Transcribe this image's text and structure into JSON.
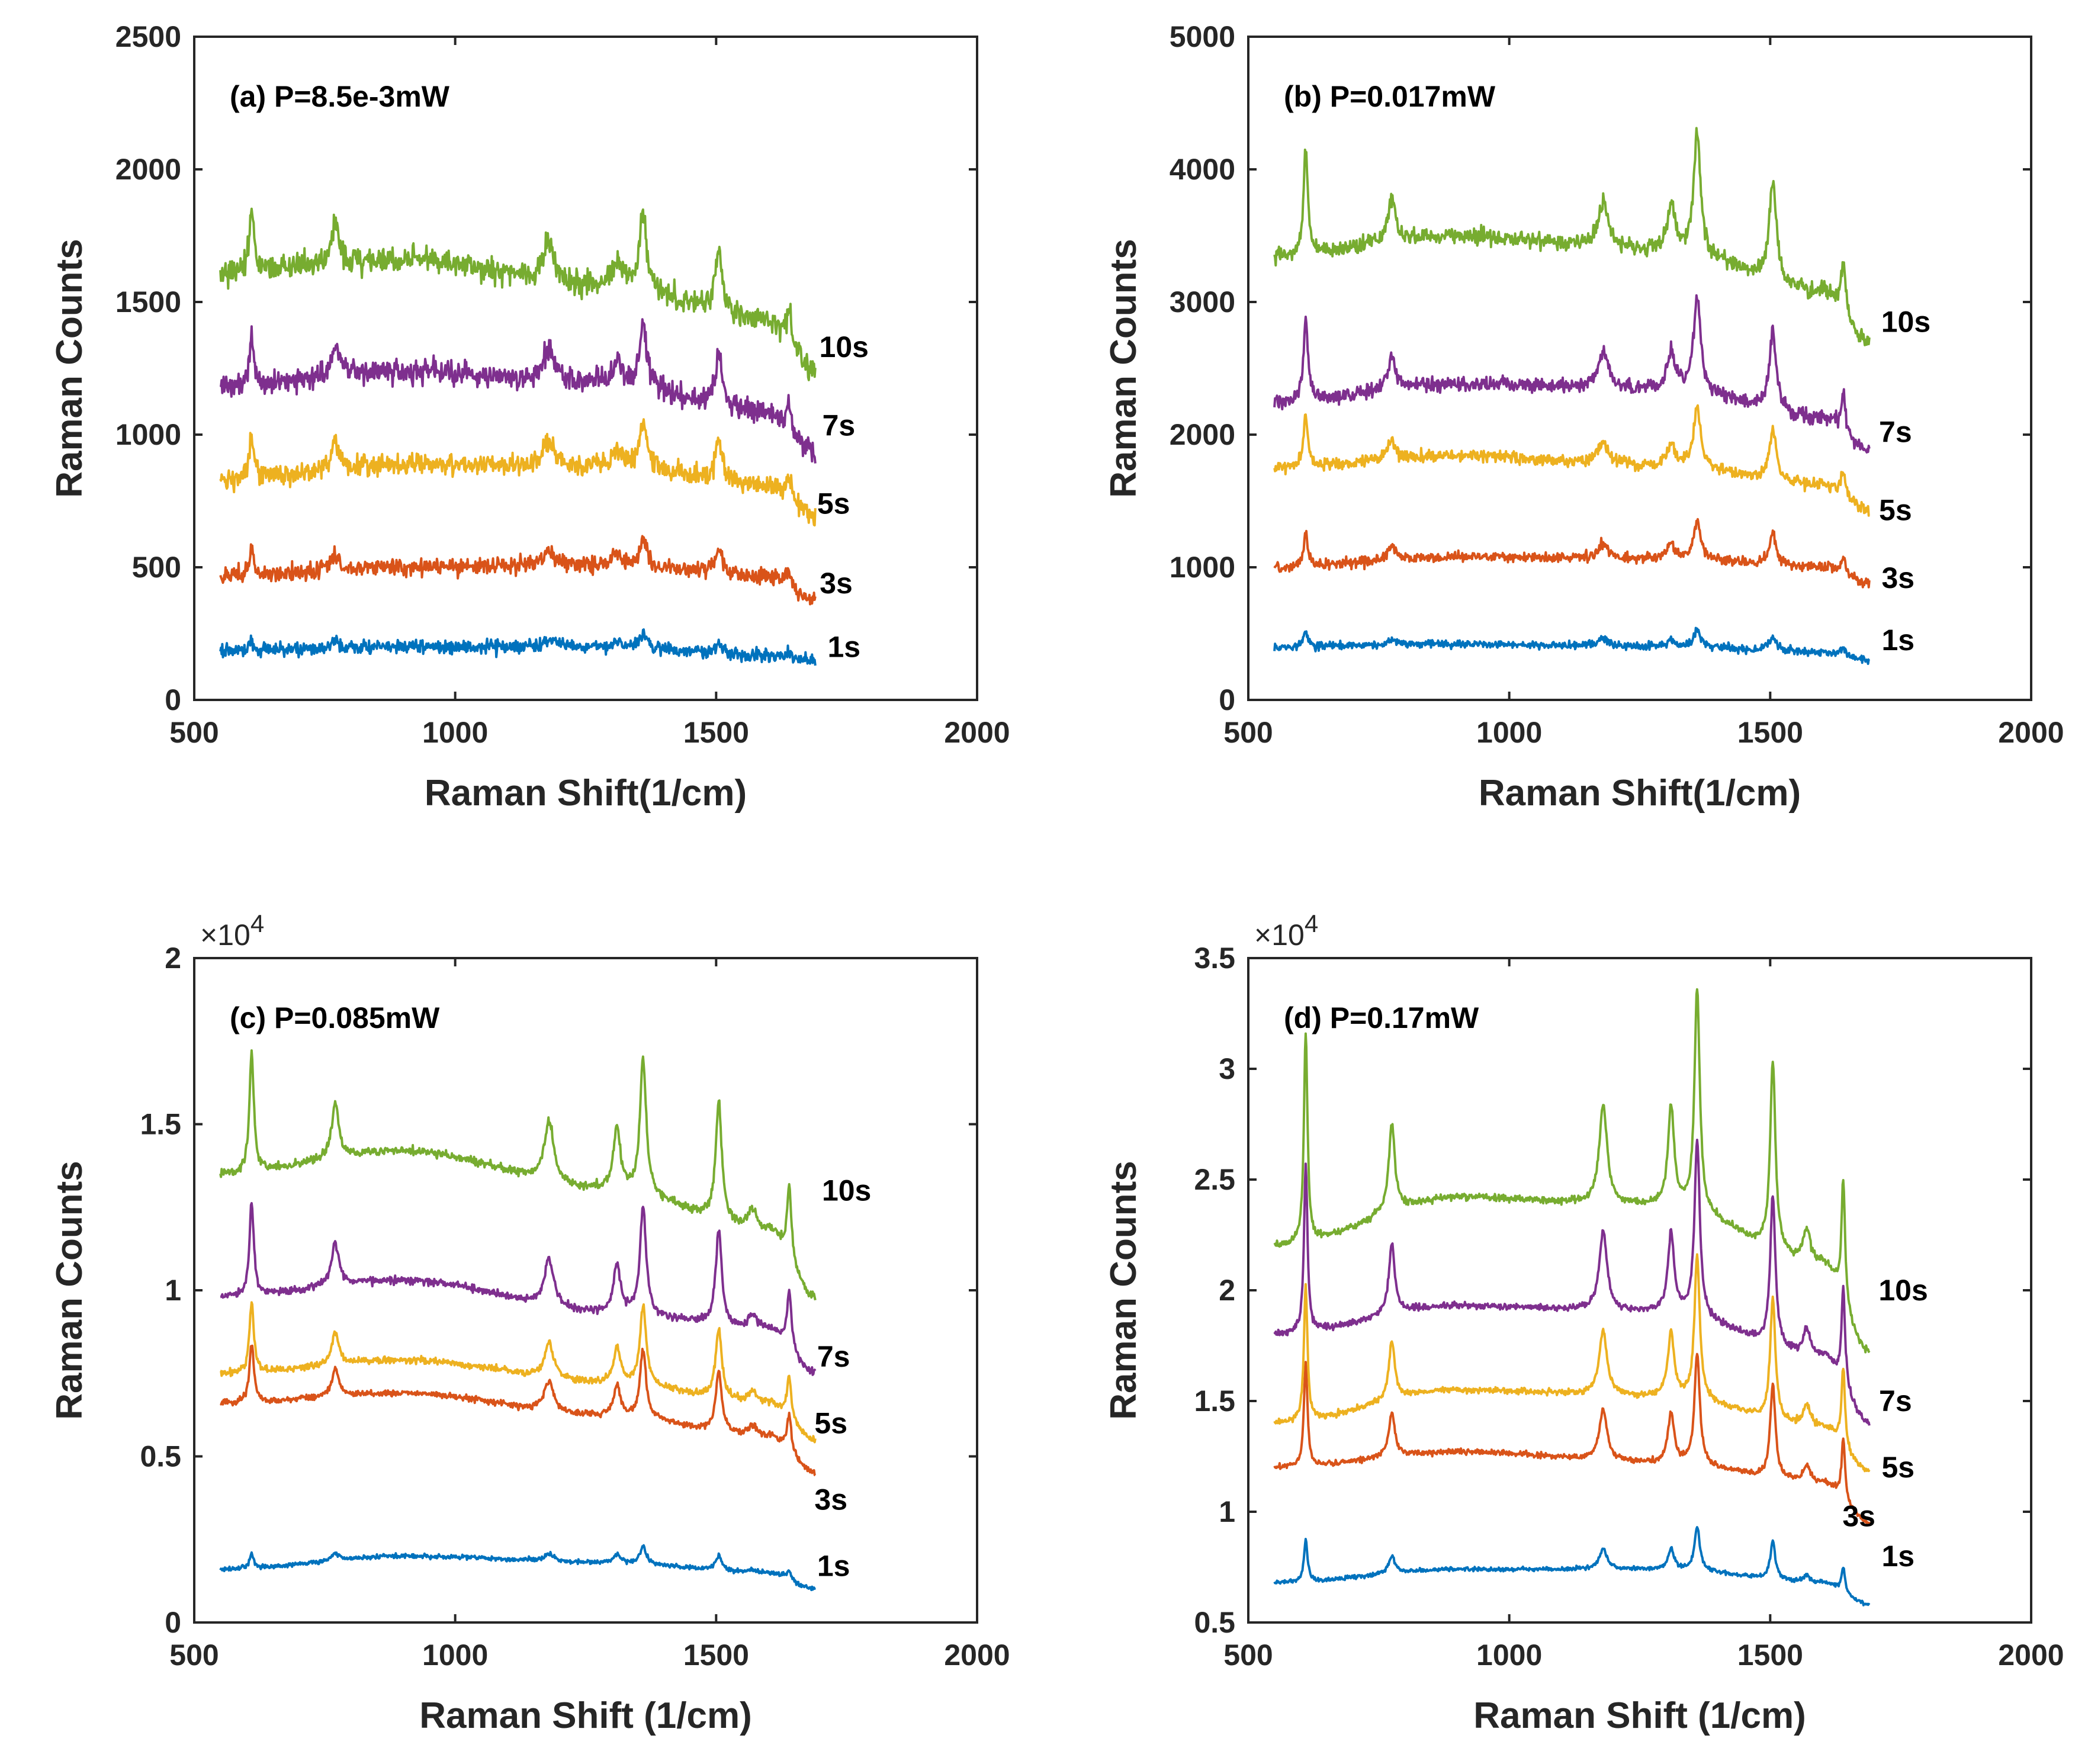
{
  "chart_data": [
    {
      "type": "line",
      "title": "(a) P=8.5e-3mW",
      "xlabel": "Raman Shift(1/cm)",
      "ylabel": "Raman Counts",
      "xlim": [
        500,
        2000
      ],
      "ylim": [
        0,
        2500
      ],
      "xticks": [
        500,
        1000,
        1500,
        2000
      ],
      "yticks": [
        0,
        500,
        1000,
        1500,
        2000,
        2500
      ],
      "exponent_label": "",
      "noise": 45,
      "peaks": [
        {
          "x": 610,
          "w": 5,
          "rel": 0.35
        },
        {
          "x": 770,
          "w": 9,
          "rel": 0.22
        },
        {
          "x": 1180,
          "w": 12,
          "rel": 0.22
        },
        {
          "x": 1310,
          "w": 9,
          "rel": 0.16
        },
        {
          "x": 1360,
          "w": 8,
          "rel": 0.42
        },
        {
          "x": 1505,
          "w": 8,
          "rel": 0.36
        },
        {
          "x": 1640,
          "w": 5,
          "rel": 0.18
        }
      ],
      "series": [
        {
          "name": "1s",
          "label": "1s",
          "color": "#0072BD",
          "baseline": [
            [
              550,
              185
            ],
            [
              900,
              200
            ],
            [
              1300,
              200
            ],
            [
              1600,
              170
            ],
            [
              1690,
              150
            ]
          ],
          "peak_scale": 110
        },
        {
          "name": "3s",
          "label": "3s",
          "color": "#D95319",
          "baseline": [
            [
              550,
              470
            ],
            [
              900,
              500
            ],
            [
              1300,
              510
            ],
            [
              1600,
              470
            ],
            [
              1690,
              380
            ]
          ],
          "peak_scale": 250
        },
        {
          "name": "5s",
          "label": "5s",
          "color": "#EDB120",
          "baseline": [
            [
              550,
              830
            ],
            [
              900,
              890
            ],
            [
              1300,
              880
            ],
            [
              1600,
              810
            ],
            [
              1690,
              700
            ]
          ],
          "peak_scale": 430
        },
        {
          "name": "7s",
          "label": "7s",
          "color": "#7E2F8E",
          "baseline": [
            [
              550,
              1180
            ],
            [
              900,
              1240
            ],
            [
              1300,
              1190
            ],
            [
              1600,
              1080
            ],
            [
              1690,
              930
            ]
          ],
          "peak_scale": 560
        },
        {
          "name": "10s",
          "label": "10s",
          "color": "#77AC30",
          "baseline": [
            [
              550,
              1610
            ],
            [
              900,
              1660
            ],
            [
              1300,
              1560
            ],
            [
              1600,
              1430
            ],
            [
              1690,
              1240
            ]
          ],
          "peak_scale": 680
        }
      ],
      "label_positions": [
        {
          "text": "1s",
          "x": 1745,
          "y": 200
        },
        {
          "text": "3s",
          "x": 1730,
          "y": 440
        },
        {
          "text": "5s",
          "x": 1725,
          "y": 740
        },
        {
          "text": "7s",
          "x": 1735,
          "y": 1035
        },
        {
          "text": "10s",
          "x": 1745,
          "y": 1330
        }
      ]
    },
    {
      "type": "line",
      "title": "(b) P=0.017mW",
      "xlabel": "Raman Shift(1/cm)",
      "ylabel": "Raman Counts",
      "xlim": [
        500,
        2000
      ],
      "ylim": [
        0,
        5000
      ],
      "xticks": [
        500,
        1000,
        1500,
        2000
      ],
      "yticks": [
        0,
        1000,
        2000,
        3000,
        4000,
        5000
      ],
      "exponent_label": "",
      "noise": 55,
      "peaks": [
        {
          "x": 610,
          "w": 5,
          "rel": 0.55
        },
        {
          "x": 775,
          "w": 9,
          "rel": 0.22
        },
        {
          "x": 1180,
          "w": 12,
          "rel": 0.25
        },
        {
          "x": 1310,
          "w": 9,
          "rel": 0.25
        },
        {
          "x": 1360,
          "w": 8,
          "rel": 0.65
        },
        {
          "x": 1505,
          "w": 8,
          "rel": 0.55
        },
        {
          "x": 1640,
          "w": 5,
          "rel": 0.28
        }
      ],
      "series": [
        {
          "name": "1s",
          "label": "1s",
          "color": "#0072BD",
          "baseline": [
            [
              550,
              400
            ],
            [
              900,
              420
            ],
            [
              1300,
              400
            ],
            [
              1600,
              360
            ],
            [
              1690,
              300
            ]
          ],
          "peak_scale": 200
        },
        {
          "name": "3s",
          "label": "3s",
          "color": "#D95319",
          "baseline": [
            [
              550,
              1000
            ],
            [
              900,
              1080
            ],
            [
              1300,
              1060
            ],
            [
              1600,
              1000
            ],
            [
              1690,
              880
            ]
          ],
          "peak_scale": 450
        },
        {
          "name": "5s",
          "label": "5s",
          "color": "#EDB120",
          "baseline": [
            [
              550,
              1750
            ],
            [
              900,
              1840
            ],
            [
              1300,
              1760
            ],
            [
              1600,
              1620
            ],
            [
              1690,
              1430
            ]
          ],
          "peak_scale": 700
        },
        {
          "name": "7s",
          "label": "7s",
          "color": "#7E2F8E",
          "baseline": [
            [
              550,
              2250
            ],
            [
              900,
              2380
            ],
            [
              1300,
              2340
            ],
            [
              1600,
              2120
            ],
            [
              1690,
              1880
            ]
          ],
          "peak_scale": 1100
        },
        {
          "name": "10s",
          "label": "10s",
          "color": "#77AC30",
          "baseline": [
            [
              550,
              3350
            ],
            [
              900,
              3500
            ],
            [
              1300,
              3380
            ],
            [
              1600,
              3080
            ],
            [
              1690,
              2700
            ]
          ],
          "peak_scale": 1400
        }
      ],
      "label_positions": [
        {
          "text": "1s",
          "x": 1745,
          "y": 450
        },
        {
          "text": "3s",
          "x": 1745,
          "y": 920
        },
        {
          "text": "5s",
          "x": 1740,
          "y": 1430
        },
        {
          "text": "7s",
          "x": 1740,
          "y": 2020
        },
        {
          "text": "10s",
          "x": 1760,
          "y": 2850
        }
      ]
    },
    {
      "type": "line",
      "title": "(c) P=0.085mW",
      "xlabel": "Raman Shift (1/cm)",
      "ylabel": "Raman Counts",
      "xlim": [
        500,
        2000
      ],
      "ylim": [
        0,
        2
      ],
      "xticks": [
        500,
        1000,
        1500,
        2000
      ],
      "yticks": [
        0,
        0.5,
        1,
        1.5,
        2
      ],
      "exponent_label": "×10^4",
      "noise": 0.012,
      "peaks": [
        {
          "x": 610,
          "w": 5,
          "rel": 0.75
        },
        {
          "x": 770,
          "w": 8,
          "rel": 0.35
        },
        {
          "x": 1180,
          "w": 11,
          "rel": 0.38
        },
        {
          "x": 1310,
          "w": 8,
          "rel": 0.38
        },
        {
          "x": 1360,
          "w": 7,
          "rel": 0.85
        },
        {
          "x": 1505,
          "w": 7,
          "rel": 0.75
        },
        {
          "x": 1570,
          "w": 10,
          "rel": 0.12
        },
        {
          "x": 1640,
          "w": 5,
          "rel": 0.45
        }
      ],
      "series": [
        {
          "name": "1s",
          "label": "1s",
          "color": "#0072BD",
          "baseline": [
            [
              550,
              0.16
            ],
            [
              900,
              0.2
            ],
            [
              1300,
              0.18
            ],
            [
              1600,
              0.15
            ],
            [
              1690,
              0.1
            ]
          ],
          "peak_scale": 0.06
        },
        {
          "name": "3s",
          "label": "3s",
          "color": "#D95319",
          "baseline": [
            [
              550,
              0.66
            ],
            [
              900,
              0.69
            ],
            [
              1300,
              0.62
            ],
            [
              1600,
              0.56
            ],
            [
              1690,
              0.45
            ]
          ],
          "peak_scale": 0.24
        },
        {
          "name": "5s",
          "label": "5s",
          "color": "#EDB120",
          "baseline": [
            [
              550,
              0.75
            ],
            [
              900,
              0.79
            ],
            [
              1300,
              0.72
            ],
            [
              1600,
              0.66
            ],
            [
              1690,
              0.55
            ]
          ],
          "peak_scale": 0.28
        },
        {
          "name": "7s",
          "label": "7s",
          "color": "#7E2F8E",
          "baseline": [
            [
              550,
              0.98
            ],
            [
              900,
              1.03
            ],
            [
              1300,
              0.93
            ],
            [
              1600,
              0.88
            ],
            [
              1690,
              0.75
            ]
          ],
          "peak_scale": 0.38
        },
        {
          "name": "10s",
          "label": "10s",
          "color": "#77AC30",
          "baseline": [
            [
              550,
              1.35
            ],
            [
              900,
              1.42
            ],
            [
              1300,
              1.3
            ],
            [
              1600,
              1.18
            ],
            [
              1690,
              0.98
            ]
          ],
          "peak_scale": 0.48
        }
      ],
      "label_positions": [
        {
          "text": "1s",
          "x": 1725,
          "y": 0.17
        },
        {
          "text": "3s",
          "x": 1720,
          "y": 0.37
        },
        {
          "text": "5s",
          "x": 1720,
          "y": 0.6
        },
        {
          "text": "7s",
          "x": 1725,
          "y": 0.8
        },
        {
          "text": "10s",
          "x": 1750,
          "y": 1.3
        }
      ]
    },
    {
      "type": "line",
      "title": "(d) P=0.17mW",
      "xlabel": "Raman Shift (1/cm)",
      "ylabel": "Raman Counts",
      "xlim": [
        500,
        2000
      ],
      "ylim": [
        0.5,
        3.5
      ],
      "xticks": [
        500,
        1000,
        1500,
        2000
      ],
      "yticks": [
        0.5,
        1,
        1.5,
        2,
        2.5,
        3,
        3.5
      ],
      "exponent_label": "×10^4",
      "noise": 0.015,
      "peaks": [
        {
          "x": 610,
          "w": 4,
          "rel": 0.95
        },
        {
          "x": 775,
          "w": 7,
          "rel": 0.4
        },
        {
          "x": 1180,
          "w": 9,
          "rel": 0.45
        },
        {
          "x": 1310,
          "w": 7,
          "rel": 0.45
        },
        {
          "x": 1360,
          "w": 6,
          "rel": 1.0
        },
        {
          "x": 1505,
          "w": 6,
          "rel": 0.85
        },
        {
          "x": 1570,
          "w": 8,
          "rel": 0.15
        },
        {
          "x": 1640,
          "w": 4,
          "rel": 0.55
        }
      ],
      "series": [
        {
          "name": "1s",
          "label": "1s",
          "color": "#0072BD",
          "baseline": [
            [
              550,
              0.68
            ],
            [
              900,
              0.74
            ],
            [
              1300,
              0.74
            ],
            [
              1600,
              0.68
            ],
            [
              1690,
              0.58
            ]
          ],
          "peak_scale": 0.2
        },
        {
          "name": "3s",
          "label": "3s",
          "color": "#D95319",
          "baseline": [
            [
              550,
              1.2
            ],
            [
              900,
              1.27
            ],
            [
              1300,
              1.22
            ],
            [
              1600,
              1.13
            ],
            [
              1690,
              0.95
            ]
          ],
          "peak_scale": 0.5
        },
        {
          "name": "5s",
          "label": "5s",
          "color": "#EDB120",
          "baseline": [
            [
              550,
              1.4
            ],
            [
              900,
              1.55
            ],
            [
              1300,
              1.52
            ],
            [
              1600,
              1.38
            ],
            [
              1690,
              1.18
            ]
          ],
          "peak_scale": 0.65
        },
        {
          "name": "7s",
          "label": "7s",
          "color": "#7E2F8E",
          "baseline": [
            [
              550,
              1.8
            ],
            [
              900,
              1.93
            ],
            [
              1300,
              1.9
            ],
            [
              1600,
              1.7
            ],
            [
              1690,
              1.4
            ]
          ],
          "peak_scale": 0.8
        },
        {
          "name": "10s",
          "label": "10s",
          "color": "#77AC30",
          "baseline": [
            [
              550,
              2.2
            ],
            [
              900,
              2.42
            ],
            [
              1300,
              2.38
            ],
            [
              1600,
              2.12
            ],
            [
              1690,
              1.72
            ]
          ],
          "peak_scale": 1.0
        }
      ],
      "label_positions": [
        {
          "text": "1s",
          "x": 1745,
          "y": 0.8
        },
        {
          "text": "3s",
          "x": 1670,
          "y": 0.98
        },
        {
          "text": "5s",
          "x": 1745,
          "y": 1.2
        },
        {
          "text": "7s",
          "x": 1740,
          "y": 1.5
        },
        {
          "text": "10s",
          "x": 1755,
          "y": 2.0
        }
      ]
    }
  ]
}
